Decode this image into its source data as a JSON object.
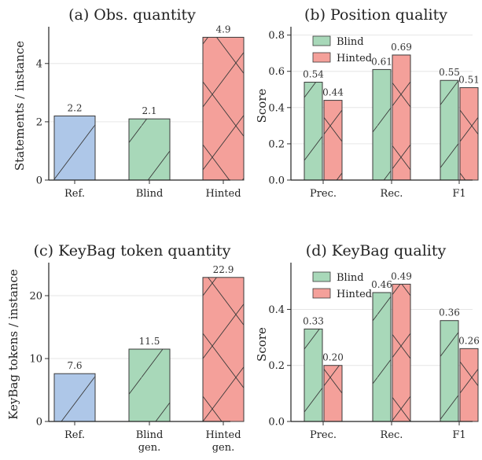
{
  "colors": {
    "ref": "#aec7e8",
    "blind": "#a8d8b9",
    "hinted": "#f4a09a",
    "edge": "#3a3a3a",
    "grid": "#e6e6e6"
  },
  "chart_data": [
    {
      "type": "bar",
      "title": "(a) Obs. quantity",
      "ylabel": "Statements / instance",
      "xlabel": "",
      "ylim": [
        0,
        5.1
      ],
      "yticks": [
        0,
        2,
        4
      ],
      "grid": true,
      "categories": [
        "Ref.",
        "Blind",
        "Hinted"
      ],
      "values": [
        2.2,
        2.1,
        4.9
      ],
      "value_labels": [
        "2.2",
        "2.1",
        "4.9"
      ],
      "bar_colors": [
        "ref",
        "blind",
        "hinted"
      ]
    },
    {
      "type": "bar",
      "title": "(b) Position quality",
      "ylabel": "Score",
      "xlabel": "",
      "ylim": [
        0,
        0.82
      ],
      "yticks": [
        "0.0",
        "0.2",
        "0.4",
        "0.6",
        "0.8"
      ],
      "grid": true,
      "legend": "top-left",
      "categories": [
        "Prec.",
        "Rec.",
        "F1"
      ],
      "series": [
        {
          "name": "Blind",
          "color": "blind",
          "values": [
            0.54,
            0.61,
            0.55
          ],
          "value_labels": [
            "0.54",
            "0.61",
            "0.55"
          ]
        },
        {
          "name": "Hinted",
          "color": "hinted",
          "values": [
            0.44,
            0.69,
            0.51
          ],
          "value_labels": [
            "0.44",
            "0.69",
            "0.51"
          ]
        }
      ]
    },
    {
      "type": "bar",
      "title": "(c) KeyBag token quantity",
      "ylabel": "KeyBag tokens / instance",
      "xlabel": "",
      "ylim": [
        0,
        24.5
      ],
      "yticks": [
        0,
        10,
        20
      ],
      "grid": true,
      "categories": [
        "Ref.",
        "Blind\ngen.",
        "Hinted\ngen."
      ],
      "values": [
        7.6,
        11.5,
        22.9
      ],
      "value_labels": [
        "7.6",
        "11.5",
        "22.9"
      ],
      "bar_colors": [
        "ref",
        "blind",
        "hinted"
      ]
    },
    {
      "type": "bar",
      "title": "(d) KeyBag quality",
      "ylabel": "Score",
      "xlabel": "",
      "ylim": [
        0,
        0.55
      ],
      "yticks": [
        "0.0",
        "0.2",
        "0.4"
      ],
      "grid": true,
      "legend": "top-left",
      "categories": [
        "Prec.",
        "Rec.",
        "F1"
      ],
      "series": [
        {
          "name": "Blind",
          "color": "blind",
          "values": [
            0.33,
            0.46,
            0.36
          ],
          "value_labels": [
            "0.33",
            "0.46",
            "0.36"
          ]
        },
        {
          "name": "Hinted",
          "color": "hinted",
          "values": [
            0.2,
            0.49,
            0.26
          ],
          "value_labels": [
            "0.20",
            "0.49",
            "0.26"
          ]
        }
      ]
    }
  ]
}
